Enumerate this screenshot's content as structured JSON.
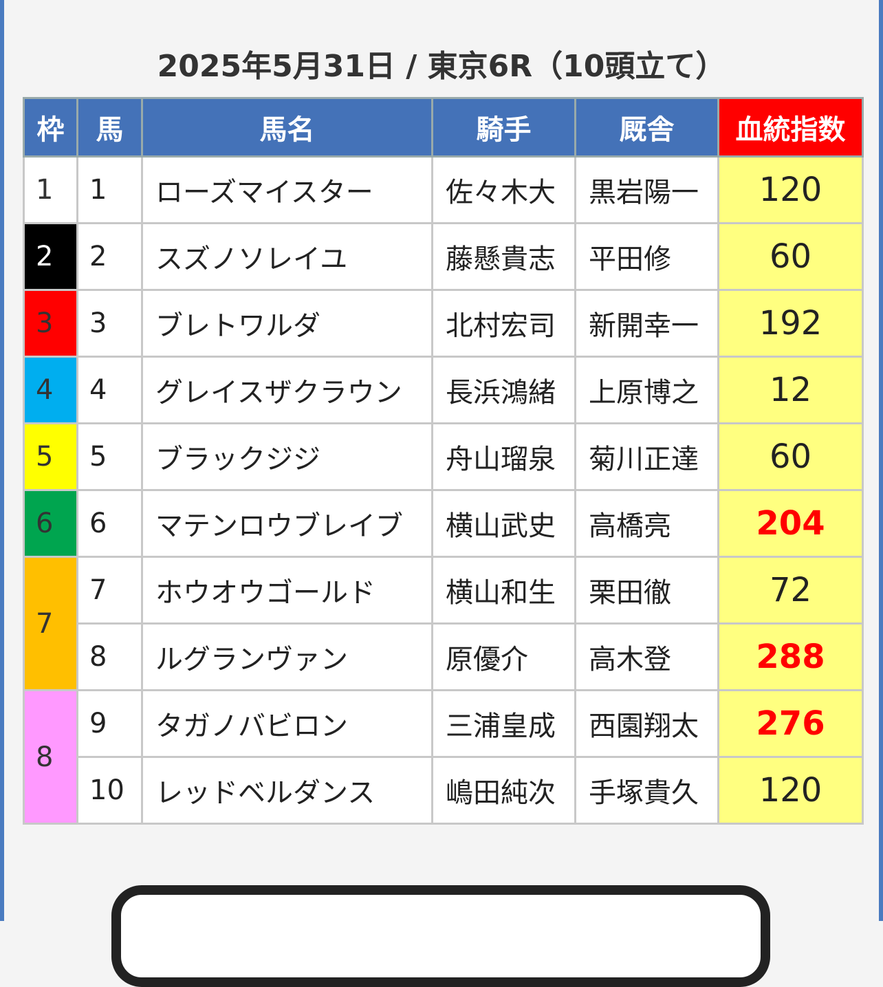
{
  "header": {
    "title": "2025年5月31日 / 東京6R（10頭立て）"
  },
  "table": {
    "columns": [
      "枠",
      "馬",
      "馬名",
      "騎手",
      "厩舎",
      "血統指数"
    ],
    "frames": [
      {
        "number": 1,
        "color": "#ffffff",
        "text_color": "#333333",
        "horses": [
          {
            "number": 1,
            "name": "ローズマイスター",
            "jockey": "佐々木大",
            "trainer": "黒岩陽一",
            "index": 120,
            "highlight": false
          }
        ]
      },
      {
        "number": 2,
        "color": "#000000",
        "text_color": "#ffffff",
        "horses": [
          {
            "number": 2,
            "name": "スズノソレイユ",
            "jockey": "藤懸貴志",
            "trainer": "平田修",
            "index": 60,
            "highlight": false
          }
        ]
      },
      {
        "number": 3,
        "color": "#ff0000",
        "text_color": "#333333",
        "horses": [
          {
            "number": 3,
            "name": "ブレトワルダ",
            "jockey": "北村宏司",
            "trainer": "新開幸一",
            "index": 192,
            "highlight": false
          }
        ]
      },
      {
        "number": 4,
        "color": "#00aeef",
        "text_color": "#333333",
        "horses": [
          {
            "number": 4,
            "name": "グレイスザクラウン",
            "jockey": "長浜鴻緒",
            "trainer": "上原博之",
            "index": 12,
            "highlight": false
          }
        ]
      },
      {
        "number": 5,
        "color": "#ffff00",
        "text_color": "#333333",
        "horses": [
          {
            "number": 5,
            "name": "ブラックジジ",
            "jockey": "舟山瑠泉",
            "trainer": "菊川正達",
            "index": 60,
            "highlight": false
          }
        ]
      },
      {
        "number": 6,
        "color": "#00a54f",
        "text_color": "#333333",
        "horses": [
          {
            "number": 6,
            "name": "マテンロウブレイブ",
            "jockey": "横山武史",
            "trainer": "高橋亮",
            "index": 204,
            "highlight": true
          }
        ]
      },
      {
        "number": 7,
        "color": "#ffbf00",
        "text_color": "#333333",
        "horses": [
          {
            "number": 7,
            "name": "ホウオウゴールド",
            "jockey": "横山和生",
            "trainer": "栗田徹",
            "index": 72,
            "highlight": false
          },
          {
            "number": 8,
            "name": "ルグランヴァン",
            "jockey": "原優介",
            "trainer": "高木登",
            "index": 288,
            "highlight": true
          }
        ]
      },
      {
        "number": 8,
        "color": "#ff99ff",
        "text_color": "#333333",
        "horses": [
          {
            "number": 9,
            "name": "タガノバビロン",
            "jockey": "三浦皇成",
            "trainer": "西園翔太",
            "index": 276,
            "highlight": true
          },
          {
            "number": 10,
            "name": "レッドベルダンス",
            "jockey": "嶋田純次",
            "trainer": "手塚貴久",
            "index": 120,
            "highlight": false
          }
        ]
      }
    ]
  }
}
